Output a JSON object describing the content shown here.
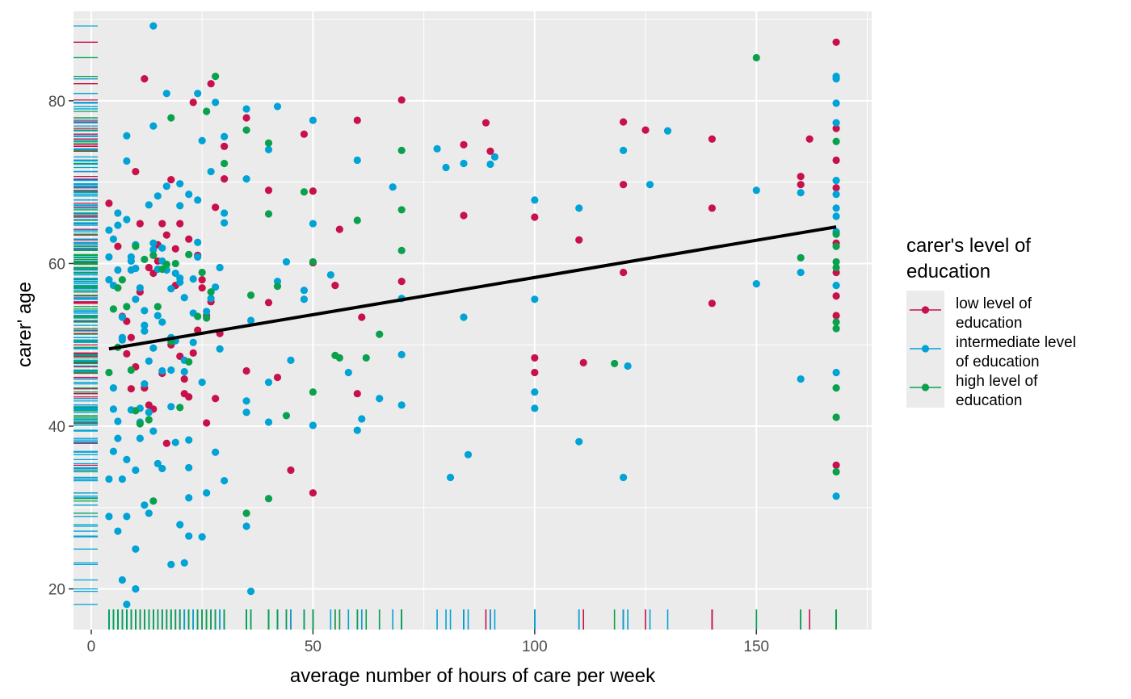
{
  "chart_data": {
    "type": "scatter",
    "xlabel": "average number of hours of care per week",
    "ylabel": "carer' age",
    "xlim": [
      -4,
      176
    ],
    "ylim": [
      15,
      91
    ],
    "x_ticks": [
      0,
      50,
      100,
      150
    ],
    "y_ticks": [
      20,
      40,
      60,
      80
    ],
    "grid": true,
    "rug": true,
    "legend": {
      "title": "carer's level of education",
      "position": "right",
      "entries": [
        {
          "label": "low level of education",
          "color": "#c8104a"
        },
        {
          "label": "intermediate level of education",
          "color": "#00a3d6"
        },
        {
          "label": "high level of education",
          "color": "#0aa14c"
        }
      ]
    },
    "trend_line": {
      "x": [
        4,
        168
      ],
      "y": [
        49.5,
        64.5
      ],
      "color": "#000000"
    },
    "series": [
      {
        "name": "low level of education",
        "color": "#c8104a",
        "x": [
          4,
          6,
          7,
          8,
          9,
          10,
          11,
          12,
          13,
          14,
          15,
          16,
          17,
          18,
          19,
          20,
          21,
          22,
          23,
          24,
          25,
          26,
          27,
          28,
          28,
          30,
          30,
          35,
          35,
          40,
          40,
          42,
          45,
          48,
          50,
          50,
          50,
          55,
          56,
          60,
          60,
          61,
          70,
          70,
          84,
          84,
          89,
          90,
          100,
          100,
          100,
          110,
          111,
          120,
          120,
          120,
          125,
          140,
          140,
          140,
          160,
          160,
          162,
          168,
          168,
          168,
          168,
          168,
          168,
          168,
          168,
          168,
          8,
          10,
          12,
          14,
          16,
          18,
          20,
          22,
          24,
          26,
          9,
          11,
          13,
          15,
          17,
          19,
          21,
          23,
          25,
          27,
          29
        ],
        "y": [
          67.4,
          62.1,
          53.5,
          52.9,
          50.9,
          71.3,
          64.9,
          82.7,
          59.5,
          58.8,
          62.3,
          64.9,
          63.5,
          70.3,
          57.3,
          64.9,
          44.0,
          63.0,
          79.8,
          61.0,
          57.0,
          53.6,
          82.1,
          66.9,
          43.4,
          74.4,
          70.4,
          77.9,
          46.8,
          69.0,
          55.2,
          46.0,
          34.6,
          75.9,
          60.1,
          68.9,
          31.8,
          57.3,
          64.2,
          77.6,
          44.0,
          53.4,
          80.1,
          57.8,
          65.9,
          74.6,
          77.3,
          73.8,
          65.7,
          46.6,
          48.4,
          62.9,
          47.8,
          77.4,
          69.7,
          58.9,
          76.4,
          75.3,
          66.8,
          55.1,
          70.7,
          69.7,
          75.3,
          87.2,
          76.6,
          72.7,
          62.5,
          58.9,
          56.0,
          53.6,
          35.2,
          69.3,
          48.9,
          47.3,
          44.7,
          42.1,
          46.5,
          50.0,
          48.6,
          43.6,
          51.8,
          40.4,
          44.6,
          56.5,
          42.6,
          60.3,
          37.9,
          61.8,
          45.8,
          49.0,
          58.0,
          55.3,
          51.4
        ]
      },
      {
        "name": "intermediate level of education",
        "color": "#00a3d6",
        "x": [
          4,
          4,
          4,
          5,
          5,
          5,
          6,
          6,
          6,
          7,
          7,
          7,
          8,
          8,
          8,
          9,
          9,
          10,
          10,
          10,
          11,
          11,
          12,
          12,
          13,
          13,
          14,
          14,
          15,
          15,
          16,
          16,
          17,
          18,
          18,
          19,
          20,
          20,
          21,
          21,
          22,
          22,
          23,
          24,
          24,
          25,
          25,
          26,
          27,
          28,
          28,
          29,
          30,
          30,
          30,
          35,
          35,
          35,
          35,
          36,
          36,
          40,
          40,
          40,
          42,
          42,
          44,
          45,
          48,
          48,
          50,
          50,
          50,
          54,
          58,
          60,
          60,
          61,
          65,
          68,
          70,
          70,
          70,
          78,
          80,
          81,
          84,
          84,
          85,
          90,
          91,
          100,
          100,
          100,
          100,
          110,
          110,
          120,
          120,
          121,
          126,
          130,
          150,
          150,
          160,
          160,
          160,
          168,
          168,
          168,
          168,
          168,
          168,
          168,
          168,
          168,
          168,
          168,
          168,
          14,
          14,
          24,
          30,
          35,
          4,
          5,
          6,
          7,
          8,
          9,
          10,
          11,
          12,
          13,
          14,
          15,
          16,
          17,
          18,
          19,
          20,
          21,
          22,
          23,
          5,
          7,
          9,
          11,
          13,
          15,
          17,
          19,
          21,
          23,
          25,
          27,
          29,
          6,
          8,
          10,
          12,
          16,
          18,
          20,
          22,
          26,
          28,
          4,
          6,
          8,
          10,
          12,
          14,
          16,
          18,
          20,
          22,
          24
        ],
        "y": [
          64.1,
          58.0,
          33.5,
          44.7,
          42.1,
          36.9,
          59.2,
          38.5,
          27.1,
          50.9,
          33.5,
          21.1,
          75.7,
          28.9,
          18.1,
          60.8,
          42.0,
          62.3,
          24.9,
          20.0,
          57.0,
          40.5,
          51.7,
          30.3,
          48.0,
          29.3,
          89.2,
          76.9,
          53.6,
          68.3,
          60.3,
          61.9,
          80.9,
          50.9,
          23.0,
          38.0,
          57.7,
          69.8,
          46.7,
          55.8,
          38.3,
          26.5,
          58.1,
          80.9,
          67.8,
          75.1,
          26.4,
          31.8,
          71.3,
          79.8,
          57.1,
          59.5,
          75.6,
          65.0,
          33.3,
          79.0,
          70.4,
          43.1,
          27.7,
          53.0,
          19.7,
          74.0,
          45.4,
          40.5,
          79.3,
          57.8,
          60.2,
          48.1,
          55.6,
          56.7,
          77.6,
          64.9,
          40.1,
          58.6,
          46.6,
          72.7,
          39.5,
          40.9,
          43.4,
          69.4,
          42.6,
          48.8,
          55.7,
          74.1,
          71.8,
          33.7,
          53.4,
          72.3,
          36.5,
          72.2,
          73.1,
          67.8,
          55.6,
          44.2,
          42.2,
          66.8,
          38.1,
          73.9,
          33.7,
          47.4,
          69.7,
          76.3,
          69.0,
          57.5,
          58.9,
          45.8,
          68.7,
          83.0,
          82.7,
          79.7,
          77.3,
          70.2,
          68.5,
          66.8,
          65.8,
          63.9,
          57.3,
          46.6,
          31.4,
          62.5,
          61.7,
          62.6,
          66.2,
          41.7,
          28.9,
          57.3,
          66.2,
          50.6,
          35.9,
          60.3,
          34.6,
          42.2,
          54.2,
          41.7,
          49.6,
          35.4,
          46.8,
          59.2,
          46.9,
          50.5,
          27.9,
          23.2,
          31.2,
          50.3,
          63.0,
          53.4,
          59.2,
          38.5,
          67.2,
          59.3,
          69.5,
          58.8,
          48.1,
          53.9,
          45.4,
          55.7,
          49.5,
          64.7,
          72.6,
          59.4,
          52.4,
          34.8,
          56.9,
          58.2,
          68.5,
          54.1,
          36.8,
          60.8,
          40.6,
          65.4,
          55.6,
          45.2,
          39.4,
          52.8,
          42.4,
          67.1,
          34.9,
          60.8
        ]
      },
      {
        "name": "high level of education",
        "color": "#0aa14c",
        "x": [
          4,
          5,
          6,
          7,
          8,
          9,
          10,
          11,
          12,
          13,
          14,
          15,
          16,
          17,
          18,
          19,
          20,
          22,
          24,
          25,
          26,
          27,
          28,
          30,
          35,
          35,
          36,
          40,
          40,
          40,
          42,
          44,
          48,
          50,
          50,
          55,
          56,
          60,
          62,
          65,
          70,
          70,
          70,
          118,
          150,
          160,
          168,
          168,
          168,
          168,
          168,
          168,
          168,
          168,
          168,
          168,
          6,
          10,
          14,
          18,
          22,
          26
        ],
        "y": [
          46.6,
          54.4,
          49.7,
          58.0,
          54.7,
          46.9,
          41.9,
          40.3,
          60.5,
          40.8,
          61.0,
          54.7,
          59.3,
          59.9,
          77.9,
          60.0,
          42.3,
          61.1,
          53.5,
          58.9,
          78.7,
          56.5,
          83.0,
          72.3,
          76.4,
          29.3,
          56.1,
          74.8,
          66.1,
          31.1,
          57.2,
          41.3,
          68.8,
          60.2,
          44.2,
          48.7,
          48.4,
          65.3,
          48.4,
          51.3,
          73.9,
          66.6,
          61.6,
          47.7,
          85.3,
          60.7,
          75.0,
          63.6,
          62.1,
          60.2,
          59.5,
          52.8,
          52.0,
          44.7,
          41.1,
          34.4,
          57.0,
          62.1,
          30.8,
          50.4,
          47.9,
          53.3
        ]
      }
    ]
  }
}
